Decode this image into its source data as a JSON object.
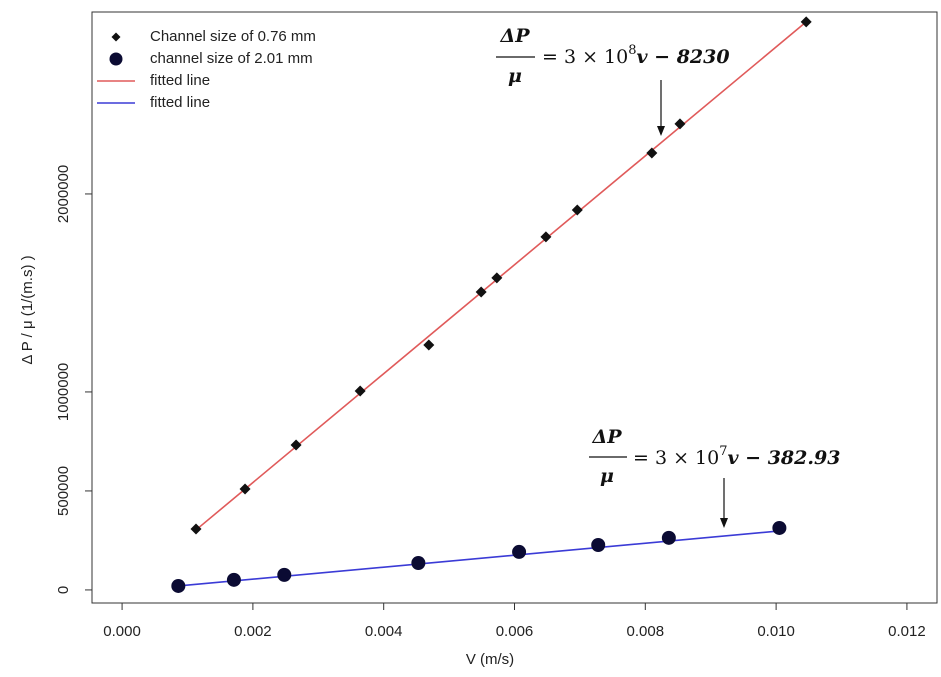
{
  "chart_data": {
    "type": "scatter",
    "x_label": "V (m/s)",
    "y_label": "Δ P / μ (1/(m.s) )",
    "xlim": [
      -0.00046,
      0.01246
    ],
    "ylim": [
      -66000,
      2919000
    ],
    "xticks": [
      {
        "value": 0,
        "label": "0.000"
      },
      {
        "value": 0.002,
        "label": "0.002"
      },
      {
        "value": 0.004,
        "label": "0.004"
      },
      {
        "value": 0.006,
        "label": "0.006"
      },
      {
        "value": 0.008,
        "label": "0.008"
      },
      {
        "value": 0.01,
        "label": "0.010"
      },
      {
        "value": 0.012,
        "label": "0.012"
      }
    ],
    "yticks": [
      0,
      500000,
      1000000,
      2000000
    ],
    "legend": "top-left",
    "series": [
      {
        "name": "Channel size of 0.76 mm",
        "kind": "points",
        "marker": "diamond",
        "color": "#111111",
        "x": [
          0.00113,
          0.00188,
          0.00266,
          0.00364,
          0.00469,
          0.00549,
          0.00573,
          0.00648,
          0.00696,
          0.0081,
          0.00853,
          0.01046
        ],
        "values": [
          308000,
          510000,
          732000,
          1005000,
          1237000,
          1505000,
          1576000,
          1783000,
          1919000,
          2207000,
          2354000,
          2869000
        ]
      },
      {
        "name": "channel size of 2.01 mm",
        "kind": "points",
        "marker": "circle",
        "color": "#0b0b33",
        "x": [
          0.00086,
          0.00171,
          0.00248,
          0.00453,
          0.00607,
          0.00728,
          0.00836,
          0.01005
        ],
        "values": [
          20000,
          51000,
          76000,
          136000,
          192000,
          227000,
          263000,
          313000
        ]
      },
      {
        "name": "fitted line",
        "kind": "line",
        "color": "#e05a5a",
        "x": [
          0.00113,
          0.01046
        ],
        "values": [
          303000,
          2869000
        ]
      },
      {
        "name": "fitted line",
        "kind": "line",
        "color": "#3b3bd6",
        "x": [
          0.00086,
          0.01005
        ],
        "values": [
          20000,
          298000
        ]
      }
    ],
    "annotations": [
      {
        "numerator": "ΔP",
        "denominator": "μ",
        "rhs": "= 3 × 10",
        "power": "8",
        "rhs_tail": "v − 8230"
      },
      {
        "numerator": "ΔP",
        "denominator": "μ",
        "rhs": "= 3 × 10",
        "power": "7",
        "rhs_tail": "v − 382.93"
      }
    ]
  }
}
